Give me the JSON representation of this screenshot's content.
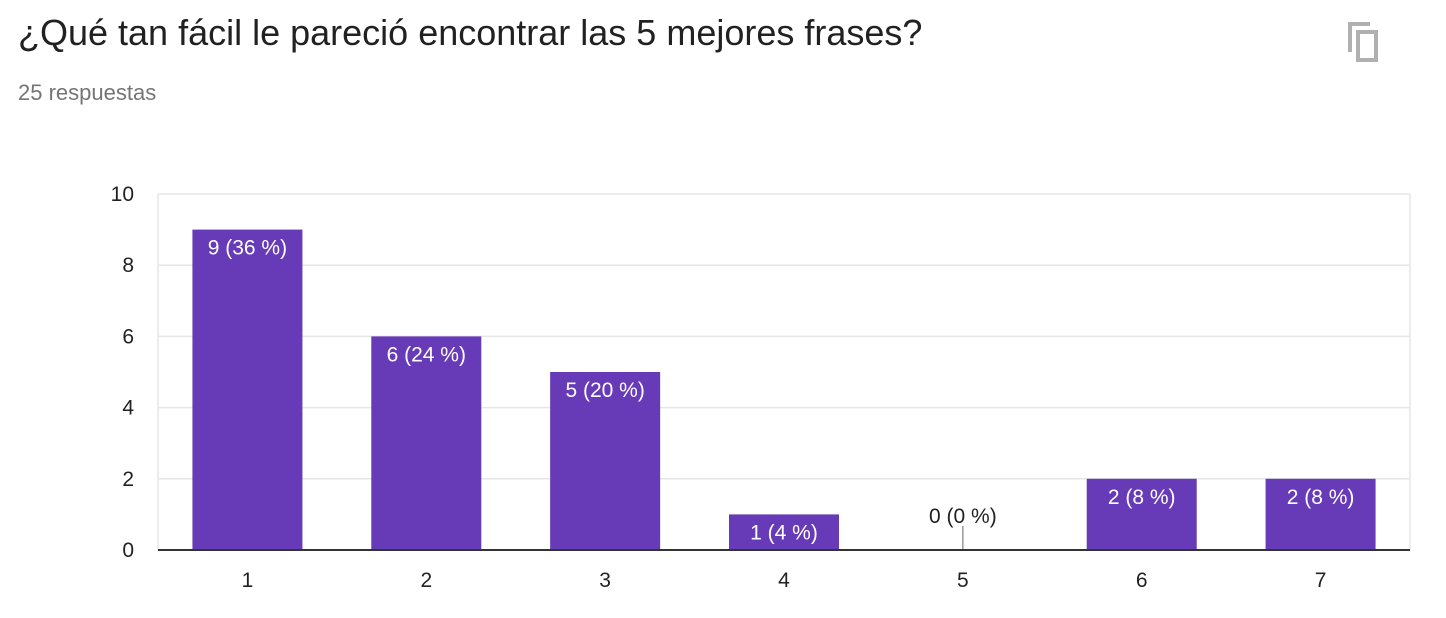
{
  "header": {
    "title": "¿Qué tan fácil le pareció encontrar las 5 mejores frases?",
    "responses": "25 respuestas",
    "copy_icon": "copy-icon"
  },
  "chart_data": {
    "type": "bar",
    "title": "",
    "xlabel": "",
    "ylabel": "",
    "categories": [
      "1",
      "2",
      "3",
      "4",
      "5",
      "6",
      "7"
    ],
    "values": [
      9,
      6,
      5,
      1,
      0,
      2,
      2
    ],
    "labels": [
      "9 (36 %)",
      "6 (24 %)",
      "5 (20 %)",
      "1 (4 %)",
      "0 (0 %)",
      "2 (8 %)",
      "2 (8 %)"
    ],
    "ylim": [
      0,
      10
    ],
    "yticks": [
      0,
      2,
      4,
      6,
      8,
      10
    ],
    "grid": true,
    "bar_color": "#673ab7"
  }
}
